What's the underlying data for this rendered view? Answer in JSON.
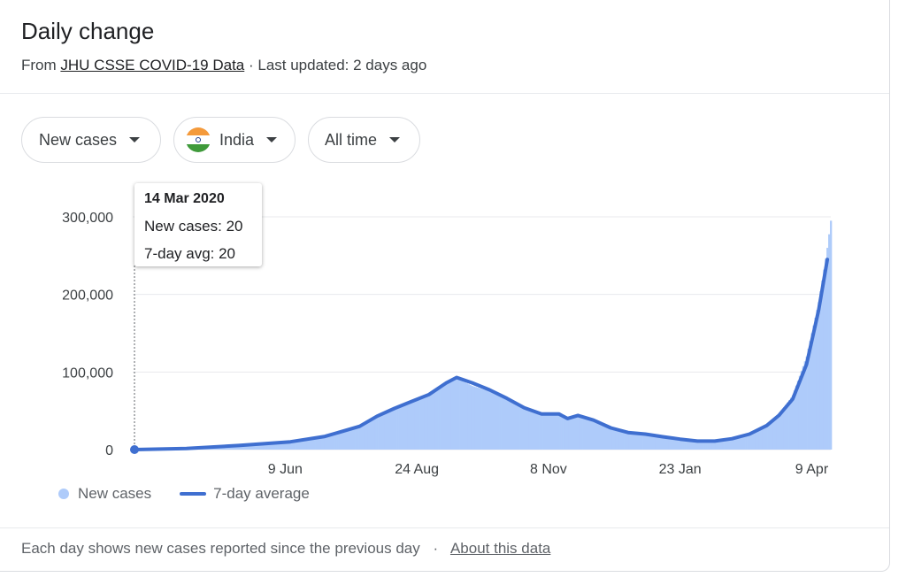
{
  "header": {
    "title": "Daily change",
    "source_prefix": "From",
    "source_link": "JHU CSSE COVID-19 Data",
    "updated": "· Last updated: 2 days ago"
  },
  "filters": {
    "metric": "New cases",
    "country": "India",
    "range": "All time"
  },
  "tooltip": {
    "date": "14 Mar 2020",
    "new_cases": "New cases: 20",
    "avg": "7-day avg: 20"
  },
  "legend": {
    "bars": "New cases",
    "line": "7-day average"
  },
  "footer": {
    "text": "Each day shows new cases reported since the previous day",
    "sep": "·",
    "link": "About this data"
  },
  "colors": {
    "bar": "#aecbfa",
    "line": "#3f6fd0",
    "grid": "#e8eaed"
  },
  "chart_data": {
    "type": "area",
    "title": "",
    "xlabel": "",
    "ylabel": "",
    "ylim": [
      0,
      300000
    ],
    "y_ticks": [
      {
        "value": 0,
        "label": "0"
      },
      {
        "value": 100000,
        "label": "100,000"
      },
      {
        "value": 200000,
        "label": "200,000"
      },
      {
        "value": 300000,
        "label": "300,000"
      }
    ],
    "x_ticks": [
      {
        "day": 87,
        "label": "9 Jun"
      },
      {
        "day": 163,
        "label": "24 Aug"
      },
      {
        "day": 239,
        "label": "8 Nov"
      },
      {
        "day": 315,
        "label": "23 Jan"
      },
      {
        "day": 391,
        "label": "9 Apr"
      }
    ],
    "x_range_days": [
      0,
      402
    ],
    "grid": true,
    "legend_position": "bottom-left",
    "highlight_day": 0,
    "series": [
      {
        "name": "New cases",
        "points": [
          [
            0,
            20
          ],
          [
            30,
            1500
          ],
          [
            60,
            5500
          ],
          [
            90,
            10500
          ],
          [
            110,
            18000
          ],
          [
            130,
            32000
          ],
          [
            140,
            45000
          ],
          [
            150,
            55000
          ],
          [
            160,
            63000
          ],
          [
            170,
            72000
          ],
          [
            180,
            87000
          ],
          [
            186,
            92000
          ],
          [
            195,
            82000
          ],
          [
            205,
            75000
          ],
          [
            215,
            65000
          ],
          [
            225,
            54000
          ],
          [
            235,
            46000
          ],
          [
            245,
            46000
          ],
          [
            250,
            40000
          ],
          [
            256,
            44000
          ],
          [
            265,
            38000
          ],
          [
            275,
            28000
          ],
          [
            285,
            23000
          ],
          [
            295,
            21000
          ],
          [
            305,
            17000
          ],
          [
            315,
            14000
          ],
          [
            325,
            11000
          ],
          [
            335,
            11000
          ],
          [
            345,
            14000
          ],
          [
            355,
            20000
          ],
          [
            365,
            32000
          ],
          [
            372,
            45000
          ],
          [
            380,
            70000
          ],
          [
            388,
            120000
          ],
          [
            395,
            190000
          ],
          [
            400,
            260000
          ],
          [
            402,
            295000
          ]
        ]
      },
      {
        "name": "7-day average",
        "points": [
          [
            0,
            20
          ],
          [
            30,
            1400
          ],
          [
            60,
            5200
          ],
          [
            90,
            10000
          ],
          [
            110,
            17000
          ],
          [
            130,
            30000
          ],
          [
            140,
            43000
          ],
          [
            150,
            53000
          ],
          [
            160,
            62000
          ],
          [
            170,
            71000
          ],
          [
            180,
            86000
          ],
          [
            186,
            93000
          ],
          [
            195,
            86000
          ],
          [
            205,
            77000
          ],
          [
            215,
            66000
          ],
          [
            225,
            54000
          ],
          [
            235,
            46000
          ],
          [
            245,
            46000
          ],
          [
            250,
            40000
          ],
          [
            256,
            44000
          ],
          [
            265,
            38000
          ],
          [
            275,
            28000
          ],
          [
            285,
            22000
          ],
          [
            295,
            20000
          ],
          [
            305,
            16500
          ],
          [
            315,
            13500
          ],
          [
            325,
            11000
          ],
          [
            335,
            11000
          ],
          [
            345,
            14000
          ],
          [
            355,
            20000
          ],
          [
            365,
            31000
          ],
          [
            372,
            44000
          ],
          [
            380,
            65000
          ],
          [
            388,
            110000
          ],
          [
            395,
            180000
          ],
          [
            400,
            245000
          ]
        ]
      }
    ]
  }
}
